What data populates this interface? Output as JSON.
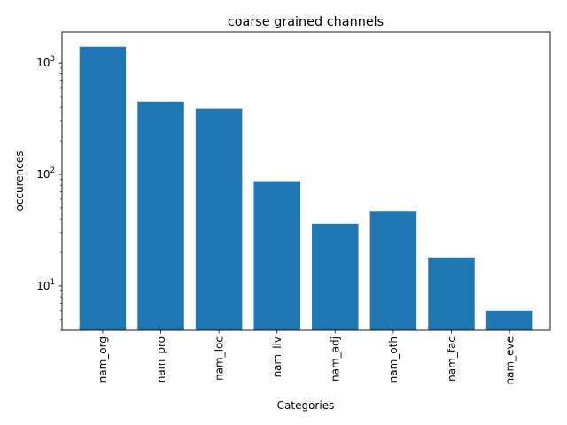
{
  "chart_data": {
    "type": "bar",
    "title": "coarse grained channels",
    "xlabel": "Categories",
    "ylabel": "occurences",
    "yscale": "log",
    "ylim": [
      4,
      1900
    ],
    "grid": false,
    "categories": [
      "nam_org",
      "nam_pro",
      "nam_loc",
      "nam_liv",
      "nam_adj",
      "nam_oth",
      "nam_fac",
      "nam_eve"
    ],
    "values": [
      1400,
      450,
      390,
      87,
      36,
      47,
      18,
      6
    ],
    "yticks": [
      {
        "value": 10,
        "base": "10",
        "exp": "1"
      },
      {
        "value": 100,
        "base": "10",
        "exp": "2"
      },
      {
        "value": 1000,
        "base": "10",
        "exp": "3"
      }
    ],
    "colors": {
      "bar": "#1f77b4",
      "axis": "#000000"
    }
  }
}
